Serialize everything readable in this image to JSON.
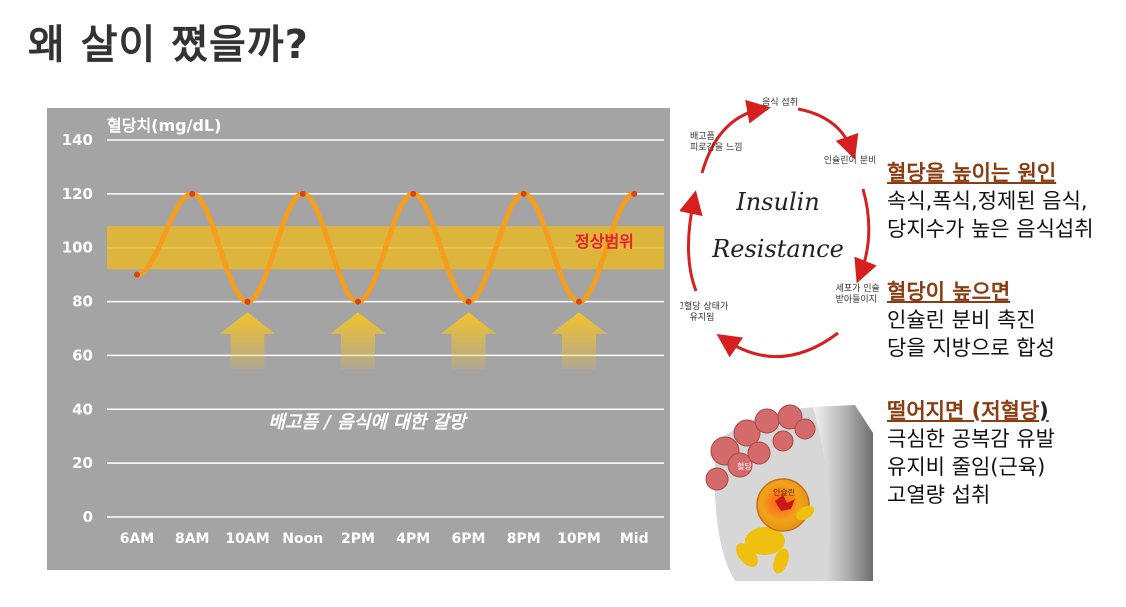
{
  "title": "왜 살이 쪘을까?",
  "chart_data": {
    "type": "line",
    "ylabel": "혈당치(mg/dL)",
    "ylim": [
      0,
      140
    ],
    "yticks": [
      0,
      20,
      40,
      60,
      80,
      100,
      120,
      140
    ],
    "categories": [
      "6AM",
      "8AM",
      "10AM",
      "Noon",
      "2PM",
      "4PM",
      "6PM",
      "8PM",
      "10PM",
      "Mid"
    ],
    "series": [
      {
        "values": [
          90,
          120,
          80,
          120,
          80,
          120,
          80,
          120,
          80,
          120
        ]
      }
    ],
    "normal_range": {
      "low": 92,
      "high": 108,
      "label": "정상범위"
    },
    "arrow_categories": [
      "10AM",
      "2PM",
      "6PM",
      "10PM"
    ],
    "annotation": "배고픔 / 음식에 대한 갈망",
    "grid": true,
    "colors": {
      "background": "#a4a4a4",
      "line": "#f59d1c",
      "band": "#e8b82c",
      "points": "#d84414",
      "range_label": "#e8202a",
      "grid": "#ffffff"
    }
  },
  "cycle": {
    "center_line1": "Insulin",
    "center_line2": "Resistance",
    "steps": [
      "음식 섭취",
      "인슐린이 분비",
      "세포가 인슐린을\n받아들이지 못함",
      "고혈당 상태가\n유지됨",
      "배고픔,\n피로감을 느낌"
    ],
    "arrow_color": "#d62020"
  },
  "causes": {
    "heading": "혈당을 높이는 원인",
    "lines": [
      "속식,폭식,정제된 음식,",
      "당지수가 높은 음식섭취"
    ]
  },
  "high": {
    "heading": "혈당이 높으면",
    "lines": [
      "인슐린 분비 촉진",
      "당을 지방으로 합성"
    ]
  },
  "low": {
    "heading": "떨어지면",
    "heading_paren_open": "(",
    "heading_paren_word": "저혈당",
    "heading_paren_close": ")",
    "lines": [
      "극심한 공복감 유발",
      "유지비 줄임(근육)",
      "고열량 섭취"
    ]
  },
  "illustration": {
    "icon": "insulin-cartoon-illustration",
    "labels": [
      "인슐린",
      "혈당"
    ]
  }
}
